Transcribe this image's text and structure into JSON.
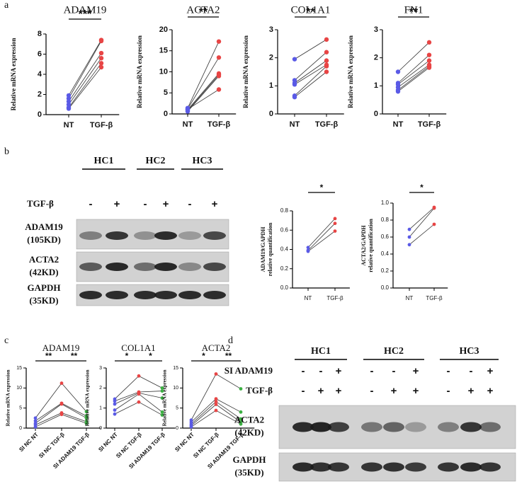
{
  "panel_labels": [
    "a",
    "b",
    "c",
    "d"
  ],
  "chart_data": [
    {
      "type": "line",
      "title": "ADAM19",
      "ylabel": [
        "Relative mRNA expression"
      ],
      "categories": [
        "NT",
        "TGF-β"
      ],
      "point_colors": [
        "#5a5ae6",
        "#e84545"
      ],
      "line_color": "#333333",
      "series": [
        {
          "values": [
            1.9,
            7.4
          ]
        },
        {
          "values": [
            1.6,
            7.3
          ]
        },
        {
          "values": [
            1.3,
            6.1
          ]
        },
        {
          "values": [
            1.0,
            5.6
          ]
        },
        {
          "values": [
            0.7,
            5.1
          ]
        },
        {
          "values": [
            0.6,
            4.7
          ]
        }
      ],
      "ylim": [
        0,
        8
      ],
      "yticks": [
        0,
        2,
        4,
        6,
        8
      ],
      "annotations": [
        {
          "text": "***",
          "between": [
            "NT",
            "TGF-β"
          ]
        }
      ]
    },
    {
      "type": "line",
      "title": "ACTA2",
      "ylabel": [
        "Relative mRNA expression"
      ],
      "categories": [
        "NT",
        "TGF-β"
      ],
      "point_colors": [
        "#5a5ae6",
        "#e84545"
      ],
      "line_color": "#333333",
      "series": [
        {
          "values": [
            1.4,
            17.2
          ]
        },
        {
          "values": [
            1.2,
            13.4
          ]
        },
        {
          "values": [
            1.0,
            9.6
          ]
        },
        {
          "values": [
            0.8,
            9.3
          ]
        },
        {
          "values": [
            0.6,
            9.0
          ]
        },
        {
          "values": [
            1.1,
            5.8
          ]
        }
      ],
      "ylim": [
        0,
        20
      ],
      "yticks": [
        0,
        5,
        10,
        15,
        20
      ],
      "annotations": [
        {
          "text": "**",
          "between": [
            "NT",
            "TGF-β"
          ]
        }
      ]
    },
    {
      "type": "line",
      "title": "COL1A1",
      "ylabel": [
        "Relative mRNA expression"
      ],
      "categories": [
        "NT",
        "TGF-β"
      ],
      "point_colors": [
        "#5a5ae6",
        "#e84545"
      ],
      "line_color": "#333333",
      "series": [
        {
          "values": [
            1.95,
            2.65
          ]
        },
        {
          "values": [
            1.2,
            2.2
          ]
        },
        {
          "values": [
            1.1,
            1.9
          ]
        },
        {
          "values": [
            1.05,
            1.75
          ]
        },
        {
          "values": [
            0.65,
            1.7
          ]
        },
        {
          "values": [
            0.6,
            1.5
          ]
        }
      ],
      "ylim": [
        0,
        3
      ],
      "yticks": [
        0,
        1,
        2,
        3
      ],
      "annotations": [
        {
          "text": "**",
          "between": [
            "NT",
            "TGF-β"
          ]
        }
      ]
    },
    {
      "type": "line",
      "title": "FN1",
      "ylabel": [
        "Relative mRNA expression"
      ],
      "categories": [
        "NT",
        "TGF-β"
      ],
      "point_colors": [
        "#5a5ae6",
        "#e84545"
      ],
      "line_color": "#333333",
      "series": [
        {
          "values": [
            1.5,
            2.55
          ]
        },
        {
          "values": [
            1.1,
            2.1
          ]
        },
        {
          "values": [
            1.05,
            1.9
          ]
        },
        {
          "values": [
            0.95,
            1.75
          ]
        },
        {
          "values": [
            0.85,
            1.7
          ]
        },
        {
          "values": [
            0.8,
            1.65
          ]
        }
      ],
      "ylim": [
        0,
        3
      ],
      "yticks": [
        0,
        1,
        2,
        3
      ],
      "annotations": [
        {
          "text": "**",
          "between": [
            "NT",
            "TGF-β"
          ]
        }
      ]
    },
    {
      "type": "line",
      "ylabel": [
        "ADAM19/GAPDH",
        "relative quantification"
      ],
      "categories": [
        "NT",
        "TGF-β"
      ],
      "point_colors": [
        "#5a5ae6",
        "#e84545"
      ],
      "line_color": "#333333",
      "series": [
        {
          "values": [
            0.42,
            0.72
          ]
        },
        {
          "values": [
            0.39,
            0.67
          ]
        },
        {
          "values": [
            0.38,
            0.59
          ]
        }
      ],
      "ylim": [
        0,
        0.8
      ],
      "yticks": [
        {
          "value": 0,
          "label": "0.0"
        },
        0.2,
        0.4,
        0.6,
        0.8
      ],
      "annotations": [
        {
          "text": "*",
          "between": [
            "NT",
            "TGF-β"
          ]
        }
      ]
    },
    {
      "type": "line",
      "ylabel": [
        "ACTA2/GAPDH",
        "relative quantification"
      ],
      "categories": [
        "NT",
        "TGF-β"
      ],
      "point_colors": [
        "#5a5ae6",
        "#e84545"
      ],
      "line_color": "#333333",
      "series": [
        {
          "values": [
            0.69,
            0.95
          ]
        },
        {
          "values": [
            0.6,
            0.94
          ]
        },
        {
          "values": [
            0.51,
            0.75
          ]
        }
      ],
      "ylim": [
        0,
        1
      ],
      "yticks": [
        {
          "value": 0,
          "label": "0.0"
        },
        0.2,
        0.4,
        0.6,
        0.8,
        {
          "value": 1,
          "label": "1.0"
        }
      ],
      "annotations": [
        {
          "text": "*",
          "between": [
            "NT",
            "TGF-β"
          ]
        }
      ]
    },
    {
      "type": "line",
      "title": "ADAM19",
      "ylabel": [
        "Relative mRNA expression"
      ],
      "categories": [
        "SI NC NT",
        "SI NC TGF-β",
        "SI ADAM19 TGF-β"
      ],
      "point_colors": [
        "#5a5ae6",
        "#e84545",
        "#3cb043"
      ],
      "line_color": "#333333",
      "series": [
        {
          "values": [
            2.5,
            11.2,
            4.1
          ]
        },
        {
          "values": [
            1.8,
            6.2,
            3.0
          ]
        },
        {
          "values": [
            1.2,
            6.0,
            2.5
          ]
        },
        {
          "values": [
            0.8,
            3.8,
            1.6
          ]
        },
        {
          "values": [
            0.3,
            3.4,
            1.2
          ]
        }
      ],
      "ylim": [
        0,
        15
      ],
      "yticks": [
        0,
        5,
        10,
        15
      ],
      "annotations": [
        {
          "text": "**",
          "between": [
            "SI NC NT",
            "SI NC TGF-β"
          ]
        },
        {
          "text": "**",
          "between": [
            "SI NC TGF-β",
            "SI ADAM19 TGF-β"
          ]
        }
      ]
    },
    {
      "type": "line",
      "title": "COL1A1",
      "ylabel": [
        "Relative mRNA expression"
      ],
      "categories": [
        "SI NC NT",
        "SI NC TGF-β",
        "SI ADAM19 TGF-β"
      ],
      "point_colors": [
        "#5a5ae6",
        "#e84545",
        "#3cb043"
      ],
      "line_color": "#333333",
      "series": [
        {
          "values": [
            1.45,
            2.6,
            2.0
          ]
        },
        {
          "values": [
            1.35,
            1.8,
            1.85
          ]
        },
        {
          "values": [
            1.2,
            1.75,
            1.5
          ]
        },
        {
          "values": [
            0.9,
            1.7,
            0.8
          ]
        },
        {
          "values": [
            0.7,
            1.3,
            0.65
          ]
        }
      ],
      "ylim": [
        0,
        3
      ],
      "yticks": [
        0,
        1,
        2,
        3
      ],
      "annotations": [
        {
          "text": "*",
          "between": [
            "SI NC NT",
            "SI NC TGF-β"
          ]
        },
        {
          "text": "*",
          "between": [
            "SI NC TGF-β",
            "SI ADAM19 TGF-β"
          ]
        }
      ]
    },
    {
      "type": "line",
      "title": "ACTA2",
      "ylabel": [
        "Relative mRNA expression"
      ],
      "categories": [
        "SI NC NT",
        "SI NC TGF-β",
        "SI ADAM19 TGF-β"
      ],
      "point_colors": [
        "#5a5ae6",
        "#e84545",
        "#3cb043"
      ],
      "line_color": "#333333",
      "series": [
        {
          "values": [
            2.0,
            13.5,
            9.8
          ]
        },
        {
          "values": [
            1.5,
            7.3,
            4.0
          ]
        },
        {
          "values": [
            1.0,
            6.6,
            2.3
          ]
        },
        {
          "values": [
            0.6,
            5.9,
            1.5
          ]
        },
        {
          "values": [
            0.3,
            4.4,
            1.0
          ]
        }
      ],
      "ylim": [
        0,
        15
      ],
      "yticks": [
        0,
        5,
        10,
        15
      ],
      "annotations": [
        {
          "text": "*",
          "between": [
            "SI NC NT",
            "SI NC TGF-β"
          ]
        },
        {
          "text": "**",
          "between": [
            "SI NC TGF-β",
            "SI ADAM19 TGF-β"
          ]
        }
      ]
    }
  ],
  "blot_b": {
    "groups": [
      "HC1",
      "HC2",
      "HC3"
    ],
    "conditions": [
      {
        "label": "TGF-β",
        "marks": [
          "-",
          "+",
          "-",
          "+",
          "-",
          "+"
        ]
      }
    ],
    "rows": [
      [
        "ADAM19",
        "(105KD)"
      ],
      [
        "ACTA2",
        "(42KD)"
      ],
      [
        "GAPDH",
        "(35KD)"
      ]
    ]
  },
  "blot_d": {
    "groups": [
      "HC1",
      "HC2",
      "HC3"
    ],
    "conditions": [
      {
        "label": "SI ADAM19",
        "marks": [
          "-",
          "-",
          "+",
          "-",
          "-",
          "+",
          "-",
          "-",
          "+"
        ]
      },
      {
        "label": "TGF-β",
        "marks": [
          "-",
          "+",
          "+",
          "-",
          "+",
          "+",
          "-",
          "+",
          "+"
        ]
      }
    ],
    "rows": [
      [
        "ACTA2",
        "(42KD)"
      ],
      [
        "GAPDH",
        "(35KD)"
      ]
    ]
  }
}
